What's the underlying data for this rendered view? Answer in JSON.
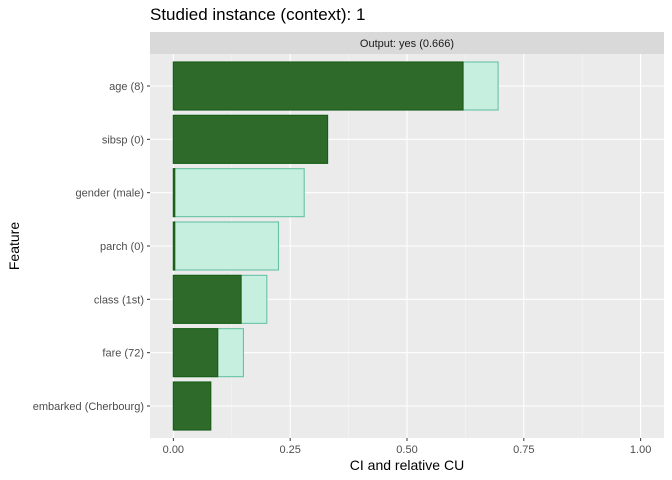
{
  "chart_data": {
    "type": "bar",
    "orientation": "horizontal",
    "title": "Studied instance (context): 1",
    "facet_label": "Output: yes (0.666)",
    "xlabel": "CI and relative CU",
    "ylabel": "Feature",
    "xlim": [
      -0.05,
      1.05
    ],
    "xticks": [
      0,
      0.25,
      0.5,
      0.75,
      1
    ],
    "xtick_labels": [
      "0.00",
      "0.25",
      "0.50",
      "0.75",
      "1.00"
    ],
    "grid": true,
    "categories": [
      "age (8)",
      "sibsp (0)",
      "gender (male)",
      "parch (0)",
      "class (1st)",
      "fare (72)",
      "embarked (Cherbourg)"
    ],
    "series": [
      {
        "values": [
          0.695,
          0.33,
          0.28,
          0.225,
          0.2,
          0.15,
          0.08
        ],
        "color": "#c6efdf",
        "border": "#66c2a5"
      },
      {
        "values": [
          0.62,
          0.33,
          0.003,
          0.003,
          0.145,
          0.095,
          0.08
        ],
        "color": "#2e6b2a",
        "border": "#1a5c16"
      }
    ]
  }
}
